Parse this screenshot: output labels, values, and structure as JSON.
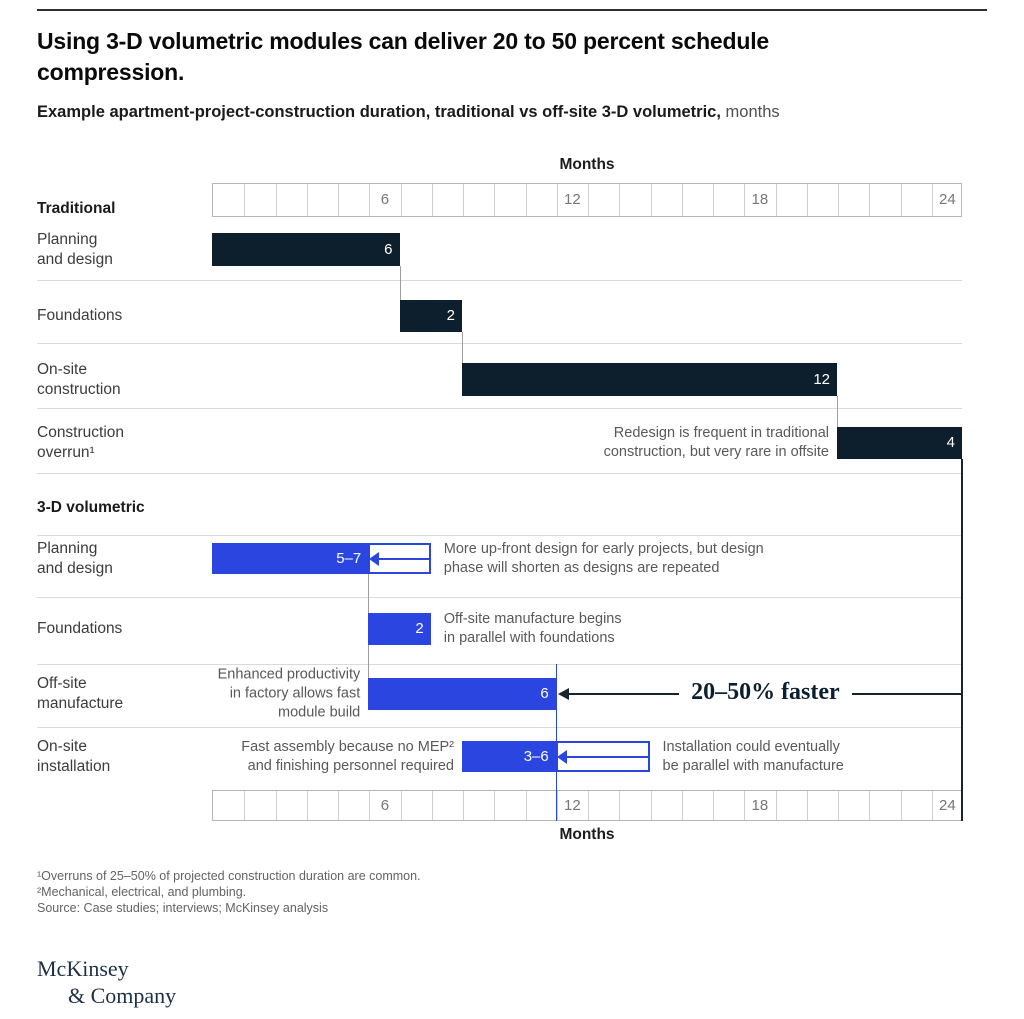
{
  "header": {
    "title": "Using 3-D volumetric modules can deliver 20 to 50 percent schedule compression.",
    "subtitle_bold": "Example apartment-project-construction duration, traditional vs off-site 3-D volumetric,",
    "subtitle_unit": " months"
  },
  "axis": {
    "label": "Months",
    "cells": 24,
    "ticks": [
      6,
      12,
      18,
      24
    ]
  },
  "colors": {
    "dark_bar": "#0d1f2d",
    "blue_bar": "#2b45e0",
    "line_dark": "#16242f",
    "grid_border": "#b5b5b5",
    "separator": "#dadada",
    "connector": "#9e9e9e"
  },
  "chart_data": {
    "type": "gantt",
    "title": "Example apartment-project-construction duration, traditional vs off-site 3-D volumetric, months",
    "unit": "months",
    "xlim": [
      0,
      24
    ],
    "sections": [
      {
        "name": "Traditional",
        "rows": [
          {
            "label": [
              "Planning",
              "and design"
            ],
            "start": 0,
            "end": 6,
            "value": "6",
            "style": "dark"
          },
          {
            "label": [
              "Foundations"
            ],
            "start": 6,
            "end": 8,
            "value": "2",
            "style": "dark"
          },
          {
            "label": [
              "On-site",
              "construction"
            ],
            "start": 8,
            "end": 20,
            "value": "12",
            "style": "dark"
          },
          {
            "label": [
              "Construction",
              "overrun¹"
            ],
            "start": 20,
            "end": 24,
            "value": "4",
            "style": "dark",
            "note_left": [
              "Redesign is frequent in traditional",
              "construction, but very rare in offsite"
            ]
          }
        ]
      },
      {
        "name": "3-D volumetric",
        "rows": [
          {
            "label": [
              "Planning",
              "and design"
            ],
            "start": 0,
            "end": 5,
            "ghost_end": 7,
            "value": "5–7",
            "style": "blue",
            "note_right": [
              "More up-front design for early projects, but design",
              "phase will shorten as designs are repeated"
            ]
          },
          {
            "label": [
              "Foundations"
            ],
            "start": 5,
            "end": 7,
            "value": "2",
            "style": "blue",
            "note_right": [
              "Off-site manufacture begins",
              "in parallel with foundations"
            ]
          },
          {
            "label": [
              "Off-site",
              "manufacture"
            ],
            "start": 5,
            "end": 11,
            "value": "6",
            "style": "blue",
            "note_left": [
              "Enhanced productivity",
              "in factory allows fast",
              "module build"
            ],
            "callout": "20–50% faster"
          },
          {
            "label": [
              "On-site",
              "installation"
            ],
            "start": 8,
            "end": 11,
            "ghost_end": 14,
            "value": "3–6",
            "style": "blue",
            "note_left": [
              "Fast assembly because no MEP²",
              "and finishing personnel required"
            ],
            "note_right": [
              "Installation could eventually",
              "be parallel with manufacture"
            ]
          }
        ]
      }
    ],
    "markers": {
      "fast_line_month": 11,
      "end_line_month": 24
    }
  },
  "footnotes": [
    "¹Overruns of 25–50% of projected construction duration are common.",
    "²Mechanical, electrical, and plumbing.",
    "Source: Case studies; interviews; McKinsey analysis"
  ],
  "logo": {
    "line1": "McKinsey",
    "line2": "& Company"
  }
}
